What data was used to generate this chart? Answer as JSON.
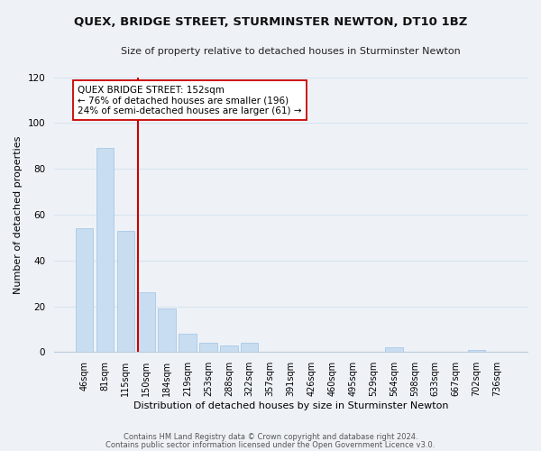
{
  "title": "QUEX, BRIDGE STREET, STURMINSTER NEWTON, DT10 1BZ",
  "subtitle": "Size of property relative to detached houses in Sturminster Newton",
  "xlabel": "Distribution of detached houses by size in Sturminster Newton",
  "ylabel": "Number of detached properties",
  "bar_labels": [
    "46sqm",
    "81sqm",
    "115sqm",
    "150sqm",
    "184sqm",
    "219sqm",
    "253sqm",
    "288sqm",
    "322sqm",
    "357sqm",
    "391sqm",
    "426sqm",
    "460sqm",
    "495sqm",
    "529sqm",
    "564sqm",
    "598sqm",
    "633sqm",
    "667sqm",
    "702sqm",
    "736sqm"
  ],
  "bar_values": [
    54,
    89,
    53,
    26,
    19,
    8,
    4,
    3,
    4,
    0,
    0,
    0,
    0,
    0,
    0,
    2,
    0,
    0,
    0,
    1,
    0
  ],
  "bar_color": "#c8ddf0",
  "bar_edge_color": "#a8c8e8",
  "vline_color": "#cc0000",
  "annotation_line1": "QUEX BRIDGE STREET: 152sqm",
  "annotation_line2": "← 76% of detached houses are smaller (196)",
  "annotation_line3": "24% of semi-detached houses are larger (61) →",
  "annotation_box_color": "#ffffff",
  "annotation_box_edge_color": "#cc0000",
  "ylim": [
    0,
    120
  ],
  "yticks": [
    0,
    20,
    40,
    60,
    80,
    100,
    120
  ],
  "grid_color": "#d8e4ee",
  "background_color": "#eef2f7",
  "plot_bg_color": "#eef2f7",
  "footer_line1": "Contains HM Land Registry data © Crown copyright and database right 2024.",
  "footer_line2": "Contains public sector information licensed under the Open Government Licence v3.0."
}
